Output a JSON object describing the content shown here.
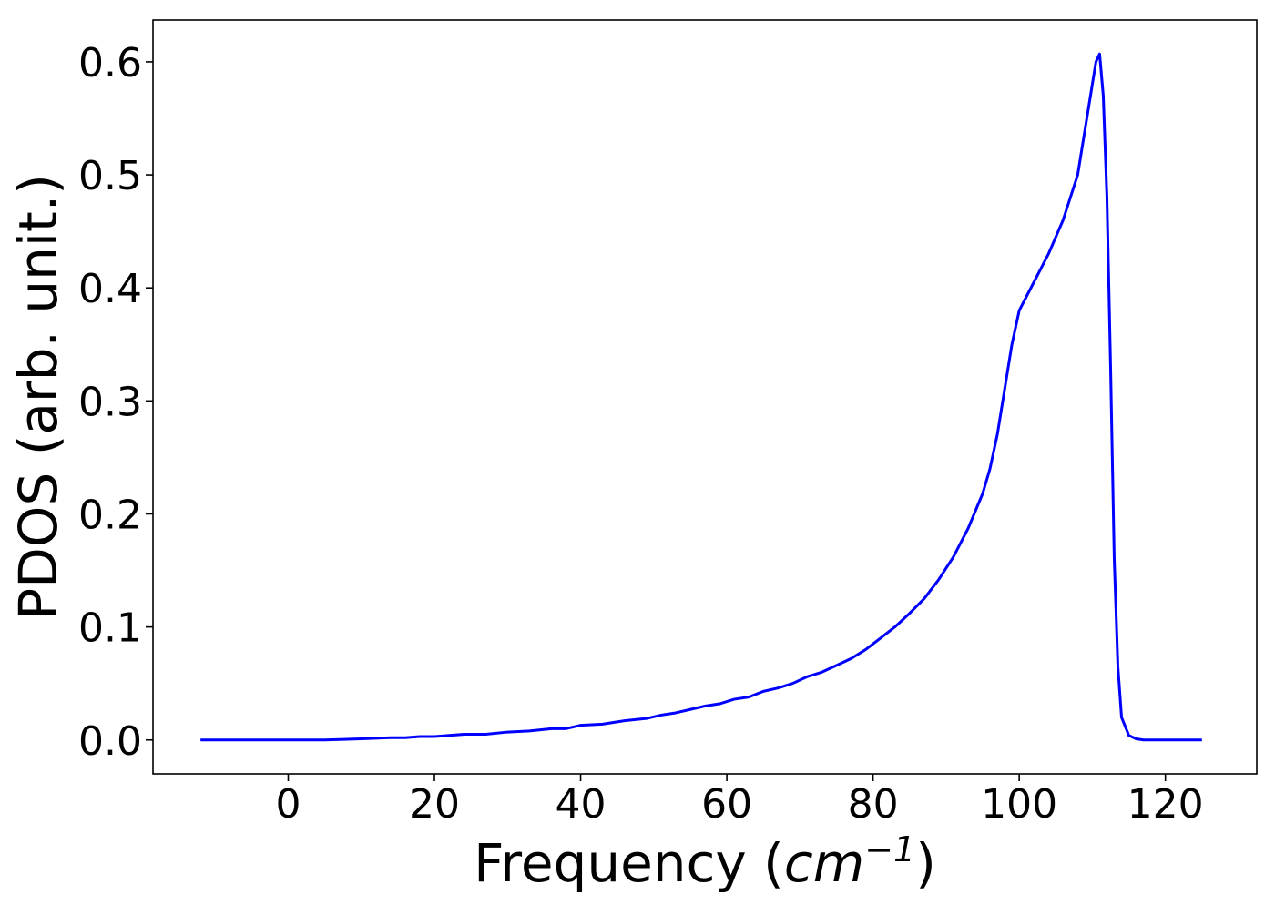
{
  "chart_data": {
    "type": "line",
    "xlabel": "Frequency (cm⁻¹)",
    "xlabel_parts": {
      "prefix": "Frequency (",
      "unit": "cm",
      "exponent": "−1",
      "suffix": ")"
    },
    "ylabel": "PDOS (arb. unit.)",
    "xlim": [
      -18.5,
      132.5
    ],
    "ylim": [
      -0.03,
      0.637
    ],
    "x_ticks": [
      0,
      20,
      40,
      60,
      80,
      100,
      120
    ],
    "x_tick_labels": [
      "0",
      "20",
      "40",
      "60",
      "80",
      "100",
      "120"
    ],
    "y_ticks": [
      0.0,
      0.1,
      0.2,
      0.3,
      0.4,
      0.5,
      0.6
    ],
    "y_tick_labels": [
      "0.0",
      "0.1",
      "0.2",
      "0.3",
      "0.4",
      "0.5",
      "0.6"
    ],
    "grid": false,
    "legend": "none",
    "series": [
      {
        "color": "#0000ff",
        "x": [
          -12,
          -5,
          0,
          5,
          10,
          14,
          16,
          18,
          20,
          22,
          24,
          27,
          30,
          33,
          36,
          38,
          40,
          43,
          46,
          49,
          51,
          53,
          55,
          57,
          59,
          61,
          63,
          65,
          67,
          69,
          71,
          73,
          75,
          77,
          79,
          81,
          83,
          85,
          87,
          89,
          91,
          93,
          95,
          96,
          97,
          98,
          99,
          100,
          102,
          104,
          106,
          108,
          109,
          110,
          110.5,
          111,
          111.5,
          112,
          112.5,
          113,
          113.5,
          114,
          115,
          116,
          117,
          118,
          120,
          125
        ],
        "y": [
          0.0,
          0.0,
          0.0,
          0.0,
          0.001,
          0.002,
          0.002,
          0.003,
          0.003,
          0.004,
          0.005,
          0.005,
          0.007,
          0.008,
          0.01,
          0.01,
          0.013,
          0.014,
          0.017,
          0.019,
          0.022,
          0.024,
          0.027,
          0.03,
          0.032,
          0.036,
          0.038,
          0.043,
          0.046,
          0.05,
          0.056,
          0.06,
          0.066,
          0.072,
          0.08,
          0.09,
          0.1,
          0.112,
          0.125,
          0.142,
          0.162,
          0.187,
          0.218,
          0.24,
          0.27,
          0.31,
          0.35,
          0.38,
          0.405,
          0.43,
          0.46,
          0.5,
          0.54,
          0.58,
          0.6,
          0.607,
          0.57,
          0.48,
          0.33,
          0.16,
          0.065,
          0.02,
          0.004,
          0.001,
          0.0,
          0.0,
          0.0,
          0.0
        ]
      }
    ]
  }
}
